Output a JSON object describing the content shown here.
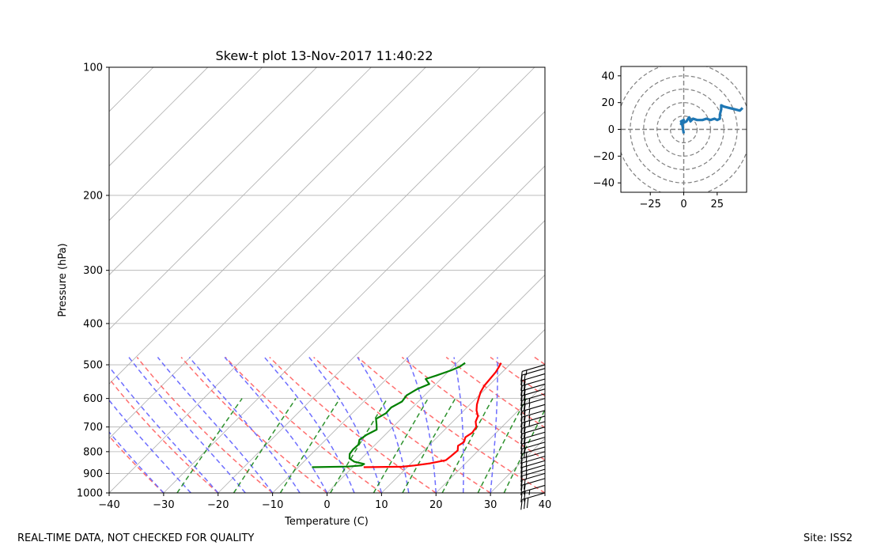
{
  "footer": {
    "left_text": "REAL-TIME DATA, NOT CHECKED FOR QUALITY",
    "right_text": "Site: ISS2"
  },
  "chart_data": [
    {
      "type": "line",
      "title": "Skew-t plot 13-Nov-2017 11:40:22",
      "xlabel": "Temperature (C)",
      "ylabel": "Pressure (hPa)",
      "xlim": [
        -40,
        40
      ],
      "ylim": [
        1000,
        100
      ],
      "y_scale": "log",
      "grid": true,
      "x_ticks": [
        -40,
        -30,
        -20,
        -10,
        0,
        10,
        20,
        30,
        40
      ],
      "y_ticks": [
        100,
        200,
        300,
        400,
        500,
        600,
        700,
        800,
        900,
        1000
      ],
      "colors": {
        "temperature": "#ff0000",
        "dewpoint": "#008000",
        "dry_adiabats": "#ff6666",
        "moist_adiabats": "#6666ff",
        "mixing_ratio": "#228b22",
        "isotherm_grid": "#b0b0b0",
        "wind_barbs": "#000000"
      },
      "series": [
        {
          "values": [
            {
              "p": 870,
              "t": 2.0
            },
            {
              "p": 868,
              "t": 9.0
            },
            {
              "p": 862,
              "t": 11.0
            },
            {
              "p": 852,
              "t": 13.5
            },
            {
              "p": 838,
              "t": 15.8
            },
            {
              "p": 820,
              "t": 16.0
            },
            {
              "p": 795,
              "t": 16.2
            },
            {
              "p": 775,
              "t": 15.4
            },
            {
              "p": 760,
              "t": 15.8
            },
            {
              "p": 740,
              "t": 15.2
            },
            {
              "p": 722,
              "t": 15.6
            },
            {
              "p": 700,
              "t": 15.3
            },
            {
              "p": 680,
              "t": 14.2
            },
            {
              "p": 660,
              "t": 13.6
            },
            {
              "p": 640,
              "t": 12.3
            },
            {
              "p": 620,
              "t": 11.3
            },
            {
              "p": 600,
              "t": 10.5
            },
            {
              "p": 580,
              "t": 9.7
            },
            {
              "p": 560,
              "t": 9.2
            },
            {
              "p": 540,
              "t": 9.0
            },
            {
              "p": 520,
              "t": 8.8
            },
            {
              "p": 505,
              "t": 8.4
            },
            {
              "p": 495,
              "t": 8.1
            }
          ]
        },
        {
          "values": [
            {
              "p": 870,
              "t": -7.5
            },
            {
              "p": 867,
              "t": -1.0
            },
            {
              "p": 862,
              "t": 1.3
            },
            {
              "p": 855,
              "t": 1.5
            },
            {
              "p": 845,
              "t": -0.7
            },
            {
              "p": 830,
              "t": -2.2
            },
            {
              "p": 810,
              "t": -3.0
            },
            {
              "p": 790,
              "t": -3.2
            },
            {
              "p": 770,
              "t": -3.1
            },
            {
              "p": 750,
              "t": -3.8
            },
            {
              "p": 730,
              "t": -3.4
            },
            {
              "p": 710,
              "t": -2.5
            },
            {
              "p": 690,
              "t": -3.5
            },
            {
              "p": 670,
              "t": -4.6
            },
            {
              "p": 650,
              "t": -3.8
            },
            {
              "p": 630,
              "t": -3.9
            },
            {
              "p": 610,
              "t": -3.0
            },
            {
              "p": 590,
              "t": -3.3
            },
            {
              "p": 570,
              "t": -2.5
            },
            {
              "p": 555,
              "t": -1.2
            },
            {
              "p": 540,
              "t": -2.8
            },
            {
              "p": 530,
              "t": -1.5
            },
            {
              "p": 515,
              "t": 0.3
            },
            {
              "p": 505,
              "t": 1.2
            },
            {
              "p": 495,
              "t": 1.5
            }
          ]
        }
      ],
      "wind_barbs": [
        {
          "p": 1000,
          "speed_kt": 30
        },
        {
          "p": 960,
          "speed_kt": 25
        },
        {
          "p": 925,
          "speed_kt": 20
        },
        {
          "p": 900,
          "speed_kt": 20
        },
        {
          "p": 880,
          "speed_kt": 15
        },
        {
          "p": 860,
          "speed_kt": 15
        },
        {
          "p": 840,
          "speed_kt": 15
        },
        {
          "p": 820,
          "speed_kt": 15
        },
        {
          "p": 800,
          "speed_kt": 15
        },
        {
          "p": 780,
          "speed_kt": 15
        },
        {
          "p": 760,
          "speed_kt": 20
        },
        {
          "p": 740,
          "speed_kt": 20
        },
        {
          "p": 720,
          "speed_kt": 20
        },
        {
          "p": 700,
          "speed_kt": 20
        },
        {
          "p": 680,
          "speed_kt": 20
        },
        {
          "p": 660,
          "speed_kt": 25
        },
        {
          "p": 640,
          "speed_kt": 25
        },
        {
          "p": 620,
          "speed_kt": 25
        },
        {
          "p": 600,
          "speed_kt": 25
        },
        {
          "p": 585,
          "speed_kt": 25
        },
        {
          "p": 570,
          "speed_kt": 20
        },
        {
          "p": 555,
          "speed_kt": 20
        },
        {
          "p": 540,
          "speed_kt": 20
        },
        {
          "p": 525,
          "speed_kt": 20
        },
        {
          "p": 510,
          "speed_kt": 20
        },
        {
          "p": 500,
          "speed_kt": 15
        }
      ]
    },
    {
      "type": "line",
      "title": "",
      "xlabel": "",
      "ylabel": "",
      "xlim": [
        -47,
        47
      ],
      "ylim": [
        -47,
        47
      ],
      "x_ticks": [
        -25,
        0,
        25
      ],
      "y_ticks": [
        40,
        20,
        0,
        -20,
        -40
      ],
      "range_rings": [
        10,
        20,
        30,
        40,
        50
      ],
      "colors": {
        "hodograph": "#1f77b4",
        "rings": "#808080"
      },
      "series": [
        {
          "values": [
            {
              "u": 0,
              "v": -3
            },
            {
              "u": -1,
              "v": 3
            },
            {
              "u": -2,
              "v": 6
            },
            {
              "u": 0,
              "v": 7
            },
            {
              "u": -2,
              "v": 4
            },
            {
              "u": 2,
              "v": 6
            },
            {
              "u": 4,
              "v": 9
            },
            {
              "u": 5,
              "v": 6
            },
            {
              "u": 7,
              "v": 8
            },
            {
              "u": 10,
              "v": 7
            },
            {
              "u": 14,
              "v": 7
            },
            {
              "u": 17,
              "v": 8
            },
            {
              "u": 20,
              "v": 7
            },
            {
              "u": 23,
              "v": 8
            },
            {
              "u": 25,
              "v": 7
            },
            {
              "u": 27,
              "v": 8
            },
            {
              "u": 27,
              "v": 11
            },
            {
              "u": 28,
              "v": 15
            },
            {
              "u": 28,
              "v": 18
            },
            {
              "u": 30,
              "v": 17
            },
            {
              "u": 34,
              "v": 16
            },
            {
              "u": 38,
              "v": 15
            },
            {
              "u": 42,
              "v": 14
            },
            {
              "u": 44,
              "v": 16
            }
          ]
        }
      ]
    }
  ]
}
